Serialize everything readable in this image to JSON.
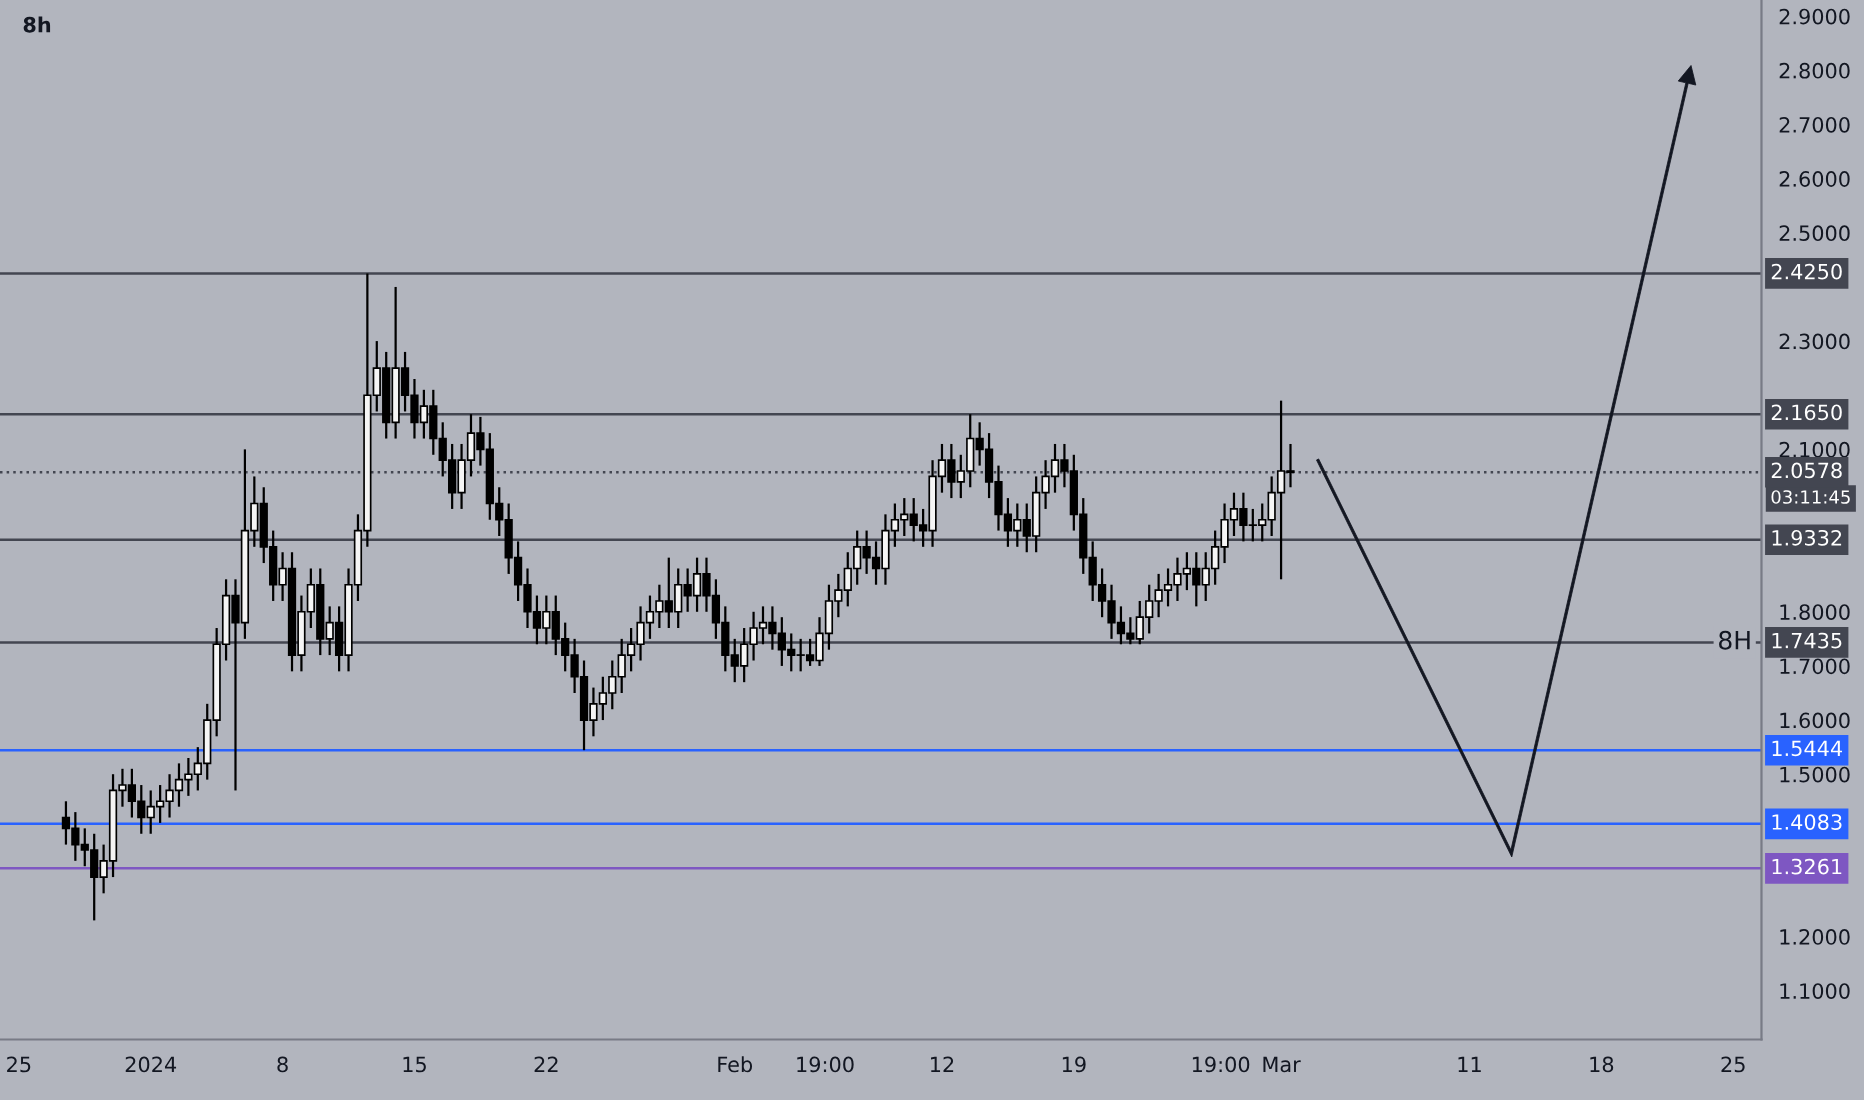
{
  "chart_data": {
    "type": "candlestick",
    "title": "8h",
    "x": [
      "2023-12-27T12:00",
      "2023-12-28T00:00",
      "2023-12-28T12:00",
      "2023-12-29T00:00",
      "2023-12-29T12:00",
      "2023-12-30T00:00",
      "2023-12-30T12:00",
      "2023-12-31T00:00",
      "2023-12-31T12:00",
      "2024-01-01T00:00",
      "2024-01-01T12:00",
      "2024-01-02T00:00",
      "2024-01-02T12:00",
      "2024-01-03T00:00",
      "2024-01-03T12:00",
      "2024-01-04T00:00",
      "2024-01-04T12:00",
      "2024-01-05T00:00",
      "2024-01-05T12:00",
      "2024-01-06T00:00",
      "2024-01-06T12:00",
      "2024-01-07T00:00",
      "2024-01-07T12:00",
      "2024-01-08T00:00",
      "2024-01-08T12:00",
      "2024-01-09T00:00",
      "2024-01-09T12:00",
      "2024-01-10T00:00",
      "2024-01-10T12:00",
      "2024-01-11T00:00",
      "2024-01-11T12:00",
      "2024-01-12T00:00",
      "2024-01-12T12:00",
      "2024-01-13T00:00",
      "2024-01-13T12:00",
      "2024-01-14T00:00",
      "2024-01-14T12:00",
      "2024-01-15T00:00",
      "2024-01-15T12:00",
      "2024-01-16T00:00",
      "2024-01-16T12:00",
      "2024-01-17T00:00",
      "2024-01-17T12:00",
      "2024-01-18T00:00",
      "2024-01-18T12:00",
      "2024-01-19T00:00",
      "2024-01-19T12:00",
      "2024-01-20T00:00",
      "2024-01-20T12:00",
      "2024-01-21T00:00",
      "2024-01-21T12:00",
      "2024-01-22T00:00",
      "2024-01-22T12:00",
      "2024-01-23T00:00",
      "2024-01-23T12:00",
      "2024-01-24T00:00",
      "2024-01-24T12:00",
      "2024-01-25T00:00",
      "2024-01-25T12:00",
      "2024-01-26T00:00",
      "2024-01-26T12:00",
      "2024-01-27T00:00",
      "2024-01-27T12:00",
      "2024-01-28T00:00",
      "2024-01-28T12:00",
      "2024-01-29T00:00",
      "2024-01-29T12:00",
      "2024-01-30T00:00",
      "2024-01-30T12:00",
      "2024-01-31T00:00",
      "2024-01-31T12:00",
      "2024-02-01T00:00",
      "2024-02-01T12:00",
      "2024-02-02T00:00",
      "2024-02-02T12:00",
      "2024-02-03T00:00",
      "2024-02-03T12:00",
      "2024-02-04T00:00",
      "2024-02-04T12:00",
      "2024-02-05T00:00",
      "2024-02-05T12:00",
      "2024-02-06T00:00",
      "2024-02-06T12:00",
      "2024-02-07T00:00",
      "2024-02-07T12:00",
      "2024-02-08T00:00",
      "2024-02-08T12:00",
      "2024-02-09T00:00",
      "2024-02-09T12:00",
      "2024-02-10T00:00",
      "2024-02-10T12:00",
      "2024-02-11T00:00",
      "2024-02-11T12:00",
      "2024-02-12T00:00",
      "2024-02-12T12:00",
      "2024-02-13T00:00",
      "2024-02-13T12:00",
      "2024-02-14T00:00",
      "2024-02-14T12:00",
      "2024-02-15T00:00",
      "2024-02-15T12:00",
      "2024-02-16T00:00",
      "2024-02-16T12:00",
      "2024-02-17T00:00",
      "2024-02-17T12:00",
      "2024-02-18T00:00",
      "2024-02-18T12:00",
      "2024-02-19T00:00",
      "2024-02-19T12:00",
      "2024-02-20T00:00",
      "2024-02-20T12:00",
      "2024-02-21T00:00",
      "2024-02-21T12:00",
      "2024-02-22T00:00",
      "2024-02-22T12:00",
      "2024-02-23T00:00",
      "2024-02-23T12:00",
      "2024-02-24T00:00",
      "2024-02-24T12:00",
      "2024-02-25T00:00",
      "2024-02-25T12:00",
      "2024-02-26T00:00",
      "2024-02-26T12:00",
      "2024-02-27T00:00",
      "2024-02-27T12:00",
      "2024-02-28T00:00",
      "2024-02-28T12:00",
      "2024-02-29T00:00",
      "2024-02-29T12:00",
      "2024-03-01T00:00",
      "2024-03-01T12:00"
    ],
    "ohlc": [
      [
        1.42,
        1.45,
        1.37,
        1.4
      ],
      [
        1.4,
        1.43,
        1.34,
        1.37
      ],
      [
        1.37,
        1.4,
        1.33,
        1.36
      ],
      [
        1.36,
        1.39,
        1.23,
        1.31
      ],
      [
        1.31,
        1.37,
        1.28,
        1.34
      ],
      [
        1.34,
        1.5,
        1.31,
        1.47
      ],
      [
        1.47,
        1.51,
        1.44,
        1.48
      ],
      [
        1.48,
        1.51,
        1.42,
        1.45
      ],
      [
        1.45,
        1.48,
        1.39,
        1.42
      ],
      [
        1.42,
        1.47,
        1.39,
        1.44
      ],
      [
        1.44,
        1.48,
        1.41,
        1.45
      ],
      [
        1.45,
        1.5,
        1.42,
        1.47
      ],
      [
        1.47,
        1.52,
        1.44,
        1.49
      ],
      [
        1.49,
        1.53,
        1.46,
        1.5
      ],
      [
        1.5,
        1.55,
        1.47,
        1.52
      ],
      [
        1.52,
        1.63,
        1.49,
        1.6
      ],
      [
        1.6,
        1.77,
        1.57,
        1.74
      ],
      [
        1.74,
        1.86,
        1.71,
        1.83
      ],
      [
        1.83,
        1.86,
        1.47,
        1.78
      ],
      [
        1.78,
        2.1,
        1.75,
        1.95
      ],
      [
        1.95,
        2.05,
        1.92,
        2.0
      ],
      [
        2.0,
        2.03,
        1.89,
        1.92
      ],
      [
        1.92,
        1.95,
        1.82,
        1.85
      ],
      [
        1.85,
        1.91,
        1.82,
        1.88
      ],
      [
        1.88,
        1.91,
        1.69,
        1.72
      ],
      [
        1.72,
        1.83,
        1.69,
        1.8
      ],
      [
        1.8,
        1.88,
        1.77,
        1.85
      ],
      [
        1.85,
        1.88,
        1.72,
        1.75
      ],
      [
        1.75,
        1.81,
        1.72,
        1.78
      ],
      [
        1.78,
        1.81,
        1.69,
        1.72
      ],
      [
        1.72,
        1.88,
        1.69,
        1.85
      ],
      [
        1.85,
        1.98,
        1.82,
        1.95
      ],
      [
        1.95,
        2.425,
        1.92,
        2.2
      ],
      [
        2.2,
        2.3,
        2.17,
        2.25
      ],
      [
        2.25,
        2.28,
        2.12,
        2.15
      ],
      [
        2.15,
        2.4,
        2.12,
        2.25
      ],
      [
        2.25,
        2.28,
        2.17,
        2.2
      ],
      [
        2.2,
        2.23,
        2.12,
        2.15
      ],
      [
        2.15,
        2.21,
        2.12,
        2.18
      ],
      [
        2.18,
        2.21,
        2.09,
        2.12
      ],
      [
        2.12,
        2.15,
        2.05,
        2.08
      ],
      [
        2.08,
        2.11,
        1.99,
        2.02
      ],
      [
        2.02,
        2.11,
        1.99,
        2.08
      ],
      [
        2.08,
        2.165,
        2.05,
        2.13
      ],
      [
        2.13,
        2.16,
        2.07,
        2.1
      ],
      [
        2.1,
        2.13,
        1.97,
        2.0
      ],
      [
        2.0,
        2.03,
        1.94,
        1.97
      ],
      [
        1.97,
        2.0,
        1.87,
        1.9
      ],
      [
        1.9,
        1.93,
        1.82,
        1.85
      ],
      [
        1.85,
        1.88,
        1.77,
        1.8
      ],
      [
        1.8,
        1.83,
        1.74,
        1.77
      ],
      [
        1.77,
        1.83,
        1.74,
        1.8
      ],
      [
        1.8,
        1.83,
        1.72,
        1.75
      ],
      [
        1.75,
        1.78,
        1.69,
        1.72
      ],
      [
        1.72,
        1.75,
        1.65,
        1.68
      ],
      [
        1.68,
        1.71,
        1.5444,
        1.6
      ],
      [
        1.6,
        1.66,
        1.57,
        1.63
      ],
      [
        1.63,
        1.68,
        1.6,
        1.65
      ],
      [
        1.65,
        1.71,
        1.62,
        1.68
      ],
      [
        1.68,
        1.75,
        1.65,
        1.72
      ],
      [
        1.72,
        1.77,
        1.69,
        1.74
      ],
      [
        1.74,
        1.81,
        1.71,
        1.78
      ],
      [
        1.78,
        1.83,
        1.75,
        1.8
      ],
      [
        1.8,
        1.85,
        1.77,
        1.82
      ],
      [
        1.82,
        1.9,
        1.77,
        1.8
      ],
      [
        1.8,
        1.88,
        1.77,
        1.85
      ],
      [
        1.85,
        1.88,
        1.8,
        1.83
      ],
      [
        1.83,
        1.9,
        1.8,
        1.87
      ],
      [
        1.87,
        1.9,
        1.8,
        1.83
      ],
      [
        1.83,
        1.86,
        1.75,
        1.78
      ],
      [
        1.78,
        1.81,
        1.69,
        1.72
      ],
      [
        1.72,
        1.75,
        1.67,
        1.7
      ],
      [
        1.7,
        1.77,
        1.67,
        1.74
      ],
      [
        1.74,
        1.8,
        1.71,
        1.77
      ],
      [
        1.77,
        1.81,
        1.74,
        1.78
      ],
      [
        1.78,
        1.81,
        1.73,
        1.76
      ],
      [
        1.76,
        1.79,
        1.7,
        1.73
      ],
      [
        1.73,
        1.76,
        1.69,
        1.72
      ],
      [
        1.72,
        1.75,
        1.69,
        1.72
      ],
      [
        1.72,
        1.75,
        1.7,
        1.71
      ],
      [
        1.71,
        1.79,
        1.7,
        1.76
      ],
      [
        1.76,
        1.85,
        1.73,
        1.82
      ],
      [
        1.82,
        1.87,
        1.79,
        1.84
      ],
      [
        1.84,
        1.91,
        1.81,
        1.88
      ],
      [
        1.88,
        1.95,
        1.85,
        1.92
      ],
      [
        1.92,
        1.95,
        1.87,
        1.9
      ],
      [
        1.9,
        1.93,
        1.85,
        1.88
      ],
      [
        1.88,
        1.98,
        1.85,
        1.95
      ],
      [
        1.95,
        2.0,
        1.92,
        1.97
      ],
      [
        1.97,
        2.01,
        1.94,
        1.98
      ],
      [
        1.98,
        2.01,
        1.93,
        1.96
      ],
      [
        1.96,
        1.99,
        1.92,
        1.95
      ],
      [
        1.95,
        2.08,
        1.92,
        2.05
      ],
      [
        2.05,
        2.11,
        2.02,
        2.08
      ],
      [
        2.08,
        2.11,
        2.01,
        2.04
      ],
      [
        2.04,
        2.09,
        2.01,
        2.06
      ],
      [
        2.06,
        2.165,
        2.03,
        2.12
      ],
      [
        2.12,
        2.15,
        2.07,
        2.1
      ],
      [
        2.1,
        2.13,
        2.01,
        2.04
      ],
      [
        2.04,
        2.07,
        1.95,
        1.98
      ],
      [
        1.98,
        2.01,
        1.92,
        1.95
      ],
      [
        1.95,
        2.0,
        1.92,
        1.97
      ],
      [
        1.97,
        2.0,
        1.91,
        1.94
      ],
      [
        1.94,
        2.05,
        1.91,
        2.02
      ],
      [
        2.02,
        2.08,
        1.99,
        2.05
      ],
      [
        2.05,
        2.11,
        2.02,
        2.08
      ],
      [
        2.08,
        2.11,
        2.03,
        2.06
      ],
      [
        2.06,
        2.09,
        1.95,
        1.98
      ],
      [
        1.98,
        2.01,
        1.87,
        1.9
      ],
      [
        1.9,
        1.93,
        1.82,
        1.85
      ],
      [
        1.85,
        1.88,
        1.79,
        1.82
      ],
      [
        1.82,
        1.85,
        1.75,
        1.78
      ],
      [
        1.78,
        1.81,
        1.74,
        1.76
      ],
      [
        1.76,
        1.79,
        1.74,
        1.75
      ],
      [
        1.75,
        1.82,
        1.74,
        1.79
      ],
      [
        1.79,
        1.85,
        1.76,
        1.82
      ],
      [
        1.82,
        1.87,
        1.79,
        1.84
      ],
      [
        1.84,
        1.88,
        1.81,
        1.85
      ],
      [
        1.85,
        1.9,
        1.82,
        1.87
      ],
      [
        1.87,
        1.91,
        1.84,
        1.88
      ],
      [
        1.88,
        1.91,
        1.81,
        1.85
      ],
      [
        1.85,
        1.91,
        1.82,
        1.88
      ],
      [
        1.88,
        1.95,
        1.85,
        1.92
      ],
      [
        1.92,
        2.0,
        1.89,
        1.97
      ],
      [
        1.97,
        2.02,
        1.94,
        1.99
      ],
      [
        1.99,
        2.02,
        1.93,
        1.96
      ],
      [
        1.96,
        1.99,
        1.93,
        1.96
      ],
      [
        1.96,
        2.0,
        1.93,
        1.97
      ],
      [
        1.97,
        2.05,
        1.94,
        2.02
      ],
      [
        2.02,
        2.19,
        1.86,
        2.06
      ],
      [
        2.06,
        2.11,
        2.03,
        2.0578
      ]
    ],
    "color": "#000000",
    "xlim": [
      "2023-12-24T00:00",
      "2024-03-26T12:00"
    ],
    "xticks": [
      {
        "value": "2023-12-25",
        "label": "25"
      },
      {
        "value": "2024-01-01",
        "label": "2024"
      },
      {
        "value": "2024-01-08",
        "label": "8"
      },
      {
        "value": "2024-01-15",
        "label": "15"
      },
      {
        "value": "2024-01-22",
        "label": "22"
      },
      {
        "value": "2024-02-01",
        "label": "Feb"
      },
      {
        "value": "2024-02-05T19:00",
        "label": "19:00"
      },
      {
        "value": "2024-02-12",
        "label": "12"
      },
      {
        "value": "2024-02-19",
        "label": "19"
      },
      {
        "value": "2024-02-26T19:00",
        "label": "19:00"
      },
      {
        "value": "2024-03-01",
        "label": "Mar"
      },
      {
        "value": "2024-03-11",
        "label": "11"
      },
      {
        "value": "2024-03-18",
        "label": "18"
      },
      {
        "value": "2024-03-25",
        "label": "25"
      }
    ],
    "ylim": [
      1.01,
      2.93
    ],
    "yticks": [
      {
        "value": 1.1,
        "label": "1.1000"
      },
      {
        "value": 1.2,
        "label": "1.2000"
      },
      {
        "value": 1.5,
        "label": "1.5000"
      },
      {
        "value": 1.6,
        "label": "1.6000"
      },
      {
        "value": 1.7,
        "label": "1.7000"
      },
      {
        "value": 1.8,
        "label": "1.8000"
      },
      {
        "value": 2.1,
        "label": "2.1000"
      },
      {
        "value": 2.3,
        "label": "2.3000"
      },
      {
        "value": 2.5,
        "label": "2.5000"
      },
      {
        "value": 2.6,
        "label": "2.6000"
      },
      {
        "value": 2.7,
        "label": "2.7000"
      },
      {
        "value": 2.8,
        "label": "2.8000"
      },
      {
        "value": 2.9,
        "label": "2.9000"
      }
    ],
    "ref_lines": [
      {
        "axis": "y",
        "value": 2.425,
        "label": "2.4250",
        "color": "#434651"
      },
      {
        "axis": "y",
        "value": 2.165,
        "label": "2.1650",
        "color": "#434651"
      },
      {
        "axis": "y",
        "value": 2.0578,
        "label": "2.0578",
        "color": "#434651",
        "line_style": "dotted"
      },
      {
        "axis": "y",
        "value": 1.9332,
        "label": "1.9332",
        "color": "#434651"
      },
      {
        "axis": "y",
        "value": 1.7435,
        "label": "1.7435",
        "color": "#434651"
      },
      {
        "axis": "y",
        "value": 1.5444,
        "label": "1.5444",
        "color": "#2962ff"
      },
      {
        "axis": "y",
        "value": 1.4083,
        "label": "1.4083",
        "color": "#2962ff"
      },
      {
        "axis": "y",
        "value": 1.3261,
        "label": "1.3261",
        "color": "#7e57c2"
      }
    ],
    "annotations": [
      {
        "text": "03:11:45",
        "x": "2024-03-26T12:00",
        "y": 2.0578
      },
      {
        "text": "8H",
        "x": "2024-03-26T00:00",
        "y": 1.7435
      }
    ],
    "grid": false,
    "legend": false
  }
}
